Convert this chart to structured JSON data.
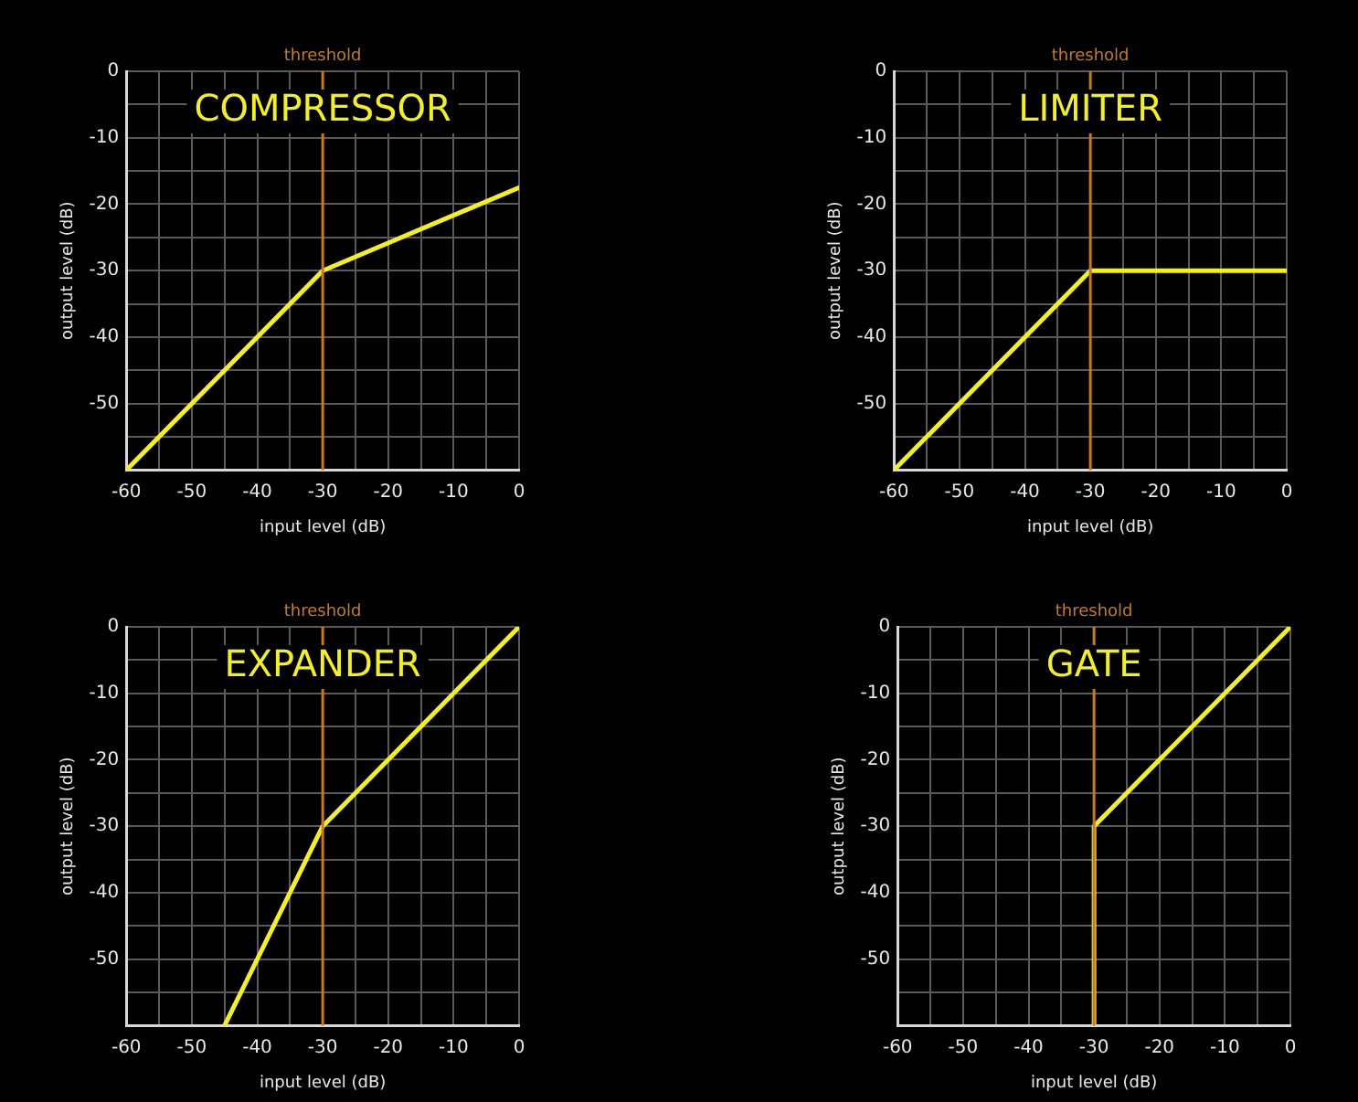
{
  "chart_data": [
    {
      "type": "line",
      "title": "COMPRESSOR",
      "xlabel": "input level (dB)",
      "ylabel": "output level (dB)",
      "xlim": [
        -60,
        0
      ],
      "ylim": [
        -60,
        0
      ],
      "xticks": [
        -60,
        {
          "value": -55,
          "label": null
        },
        -50,
        {
          "value": -45,
          "label": null
        },
        -40,
        {
          "value": -35,
          "label": null
        },
        -30,
        {
          "value": -25,
          "label": null
        },
        -20,
        {
          "value": -15,
          "label": null
        },
        -10,
        {
          "value": -5,
          "label": null
        },
        0
      ],
      "yticks": [
        {
          "value": -60,
          "label": null
        },
        {
          "value": -55,
          "label": null
        },
        -50,
        {
          "value": -45,
          "label": null
        },
        -40,
        {
          "value": -35,
          "label": null
        },
        -30,
        {
          "value": -25,
          "label": null
        },
        -20,
        {
          "value": -15,
          "label": null
        },
        -10,
        {
          "value": -5,
          "label": null
        },
        0
      ],
      "grid": true,
      "marker": "none",
      "line_style": "solid",
      "ref_lines": [
        {
          "axis": "x",
          "value": -30,
          "label": "threshold",
          "color": "#c27a2c"
        }
      ],
      "series": [
        {
          "color": "#f2ee2e",
          "x": [
            -60,
            -30,
            0
          ],
          "values": [
            -60,
            -30,
            -17.5
          ]
        }
      ]
    },
    {
      "type": "line",
      "title": "LIMITER",
      "xlabel": "input level (dB)",
      "ylabel": "output level (dB)",
      "xlim": [
        -60,
        0
      ],
      "ylim": [
        -60,
        0
      ],
      "xticks": [
        -60,
        {
          "value": -55,
          "label": null
        },
        -50,
        {
          "value": -45,
          "label": null
        },
        -40,
        {
          "value": -35,
          "label": null
        },
        -30,
        {
          "value": -25,
          "label": null
        },
        -20,
        {
          "value": -15,
          "label": null
        },
        -10,
        {
          "value": -5,
          "label": null
        },
        0
      ],
      "yticks": [
        {
          "value": -60,
          "label": null
        },
        {
          "value": -55,
          "label": null
        },
        -50,
        {
          "value": -45,
          "label": null
        },
        -40,
        {
          "value": -35,
          "label": null
        },
        -30,
        {
          "value": -25,
          "label": null
        },
        -20,
        {
          "value": -15,
          "label": null
        },
        -10,
        {
          "value": -5,
          "label": null
        },
        0
      ],
      "grid": true,
      "marker": "none",
      "line_style": "solid",
      "ref_lines": [
        {
          "axis": "x",
          "value": -30,
          "label": "threshold",
          "color": "#c27a2c"
        }
      ],
      "series": [
        {
          "color": "#f2ee2e",
          "x": [
            -60,
            -30,
            0
          ],
          "values": [
            -60,
            -30,
            -30
          ]
        }
      ]
    },
    {
      "type": "line",
      "title": "EXPANDER",
      "xlabel": "input level (dB)",
      "ylabel": "output level (dB)",
      "xlim": [
        -60,
        0
      ],
      "ylim": [
        -60,
        0
      ],
      "xticks": [
        -60,
        {
          "value": -55,
          "label": null
        },
        -50,
        {
          "value": -45,
          "label": null
        },
        -40,
        {
          "value": -35,
          "label": null
        },
        -30,
        {
          "value": -25,
          "label": null
        },
        -20,
        {
          "value": -15,
          "label": null
        },
        -10,
        {
          "value": -5,
          "label": null
        },
        0
      ],
      "yticks": [
        {
          "value": -60,
          "label": null
        },
        {
          "value": -55,
          "label": null
        },
        -50,
        {
          "value": -45,
          "label": null
        },
        -40,
        {
          "value": -35,
          "label": null
        },
        -30,
        {
          "value": -25,
          "label": null
        },
        -20,
        {
          "value": -15,
          "label": null
        },
        -10,
        {
          "value": -5,
          "label": null
        },
        0
      ],
      "grid": true,
      "marker": "none",
      "line_style": "solid",
      "ref_lines": [
        {
          "axis": "x",
          "value": -30,
          "label": "threshold",
          "color": "#c27a2c"
        }
      ],
      "series": [
        {
          "color": "#f2ee2e",
          "x": [
            -45,
            -30,
            0
          ],
          "values": [
            -60,
            -30,
            0
          ]
        }
      ]
    },
    {
      "type": "line",
      "title": "GATE",
      "xlabel": "input level (dB)",
      "ylabel": "output level (dB)",
      "xlim": [
        -60,
        0
      ],
      "ylim": [
        -60,
        0
      ],
      "xticks": [
        -60,
        {
          "value": -55,
          "label": null
        },
        -50,
        {
          "value": -45,
          "label": null
        },
        -40,
        {
          "value": -35,
          "label": null
        },
        -30,
        {
          "value": -25,
          "label": null
        },
        -20,
        {
          "value": -15,
          "label": null
        },
        -10,
        {
          "value": -5,
          "label": null
        },
        0
      ],
      "yticks": [
        {
          "value": -60,
          "label": null
        },
        {
          "value": -55,
          "label": null
        },
        -50,
        {
          "value": -45,
          "label": null
        },
        -40,
        {
          "value": -35,
          "label": null
        },
        -30,
        {
          "value": -25,
          "label": null
        },
        -20,
        {
          "value": -15,
          "label": null
        },
        -10,
        {
          "value": -5,
          "label": null
        },
        0
      ],
      "grid": true,
      "marker": "none",
      "line_style": "solid",
      "ref_lines": [
        {
          "axis": "x",
          "value": -30,
          "label": "threshold",
          "color": "#c27a2c"
        }
      ],
      "series": [
        {
          "color": "#f2ee2e",
          "x": [
            -30,
            -30,
            0
          ],
          "values": [
            -60,
            -30,
            0
          ]
        }
      ]
    }
  ]
}
